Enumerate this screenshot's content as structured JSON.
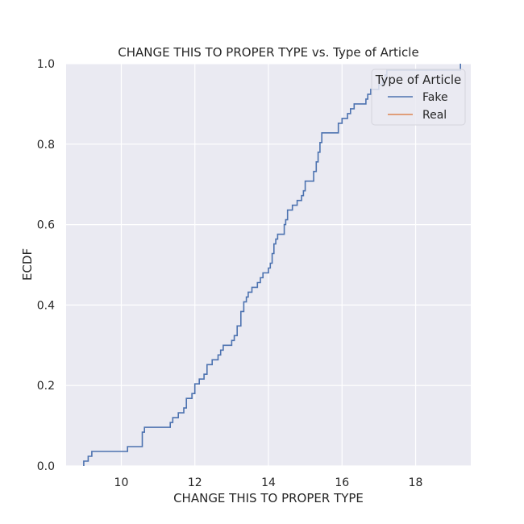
{
  "chart_data": {
    "type": "line",
    "subtype": "ecdf-step",
    "title": "CHANGE THIS TO PROPER TYPE vs. Type of Article",
    "xlabel": "CHANGE THIS TO PROPER TYPE",
    "ylabel": "ECDF",
    "xlim": [
      8.5,
      19.5
    ],
    "ylim": [
      0.0,
      1.0
    ],
    "xticks": [
      "10",
      "12",
      "14",
      "16",
      "18"
    ],
    "yticks": [
      "0.0",
      "0.2",
      "0.4",
      "0.6",
      "0.8",
      "1.0"
    ],
    "grid": true,
    "legend": {
      "title": "Type of Article",
      "placement": "top-right"
    },
    "series": [
      {
        "name": "Fake",
        "color": "#4c72b0",
        "points": [
          [
            8.98,
            0.0
          ],
          [
            8.98,
            0.012
          ],
          [
            9.1,
            0.012
          ],
          [
            9.1,
            0.024
          ],
          [
            9.2,
            0.024
          ],
          [
            9.2,
            0.036
          ],
          [
            10.17,
            0.036
          ],
          [
            10.17,
            0.048
          ],
          [
            10.57,
            0.048
          ],
          [
            10.57,
            0.084
          ],
          [
            10.63,
            0.084
          ],
          [
            10.63,
            0.096
          ],
          [
            11.33,
            0.096
          ],
          [
            11.33,
            0.108
          ],
          [
            11.4,
            0.108
          ],
          [
            11.4,
            0.12
          ],
          [
            11.55,
            0.12
          ],
          [
            11.55,
            0.132
          ],
          [
            11.7,
            0.132
          ],
          [
            11.7,
            0.144
          ],
          [
            11.77,
            0.144
          ],
          [
            11.77,
            0.168
          ],
          [
            11.92,
            0.168
          ],
          [
            11.92,
            0.18
          ],
          [
            12.0,
            0.18
          ],
          [
            12.0,
            0.204
          ],
          [
            12.12,
            0.204
          ],
          [
            12.12,
            0.216
          ],
          [
            12.25,
            0.216
          ],
          [
            12.25,
            0.228
          ],
          [
            12.33,
            0.228
          ],
          [
            12.33,
            0.252
          ],
          [
            12.47,
            0.252
          ],
          [
            12.47,
            0.264
          ],
          [
            12.63,
            0.264
          ],
          [
            12.63,
            0.276
          ],
          [
            12.7,
            0.276
          ],
          [
            12.7,
            0.288
          ],
          [
            12.77,
            0.288
          ],
          [
            12.77,
            0.3
          ],
          [
            13.0,
            0.3
          ],
          [
            13.0,
            0.312
          ],
          [
            13.07,
            0.312
          ],
          [
            13.07,
            0.324
          ],
          [
            13.15,
            0.324
          ],
          [
            13.15,
            0.348
          ],
          [
            13.25,
            0.348
          ],
          [
            13.25,
            0.384
          ],
          [
            13.33,
            0.384
          ],
          [
            13.33,
            0.408
          ],
          [
            13.4,
            0.408
          ],
          [
            13.4,
            0.42
          ],
          [
            13.45,
            0.42
          ],
          [
            13.45,
            0.432
          ],
          [
            13.55,
            0.432
          ],
          [
            13.55,
            0.444
          ],
          [
            13.7,
            0.444
          ],
          [
            13.7,
            0.456
          ],
          [
            13.78,
            0.456
          ],
          [
            13.78,
            0.468
          ],
          [
            13.85,
            0.468
          ],
          [
            13.85,
            0.48
          ],
          [
            14.0,
            0.48
          ],
          [
            14.0,
            0.492
          ],
          [
            14.05,
            0.492
          ],
          [
            14.05,
            0.504
          ],
          [
            14.1,
            0.504
          ],
          [
            14.1,
            0.528
          ],
          [
            14.15,
            0.528
          ],
          [
            14.15,
            0.552
          ],
          [
            14.2,
            0.552
          ],
          [
            14.2,
            0.564
          ],
          [
            14.25,
            0.564
          ],
          [
            14.25,
            0.576
          ],
          [
            14.43,
            0.576
          ],
          [
            14.43,
            0.6
          ],
          [
            14.47,
            0.6
          ],
          [
            14.47,
            0.612
          ],
          [
            14.52,
            0.612
          ],
          [
            14.52,
            0.636
          ],
          [
            14.65,
            0.636
          ],
          [
            14.65,
            0.648
          ],
          [
            14.78,
            0.648
          ],
          [
            14.78,
            0.66
          ],
          [
            14.9,
            0.66
          ],
          [
            14.9,
            0.672
          ],
          [
            14.95,
            0.672
          ],
          [
            14.95,
            0.684
          ],
          [
            15.0,
            0.684
          ],
          [
            15.0,
            0.708
          ],
          [
            15.23,
            0.708
          ],
          [
            15.23,
            0.732
          ],
          [
            15.3,
            0.732
          ],
          [
            15.3,
            0.756
          ],
          [
            15.35,
            0.756
          ],
          [
            15.35,
            0.78
          ],
          [
            15.4,
            0.78
          ],
          [
            15.4,
            0.804
          ],
          [
            15.45,
            0.804
          ],
          [
            15.45,
            0.828
          ],
          [
            15.9,
            0.828
          ],
          [
            15.9,
            0.852
          ],
          [
            16.0,
            0.852
          ],
          [
            16.0,
            0.864
          ],
          [
            16.15,
            0.864
          ],
          [
            16.15,
            0.876
          ],
          [
            16.23,
            0.876
          ],
          [
            16.23,
            0.888
          ],
          [
            16.33,
            0.888
          ],
          [
            16.33,
            0.9
          ],
          [
            16.65,
            0.9
          ],
          [
            16.65,
            0.912
          ],
          [
            16.7,
            0.912
          ],
          [
            16.7,
            0.924
          ],
          [
            16.78,
            0.924
          ],
          [
            16.78,
            0.936
          ],
          [
            17.0,
            0.936
          ],
          [
            17.0,
            0.948
          ],
          [
            17.1,
            0.948
          ],
          [
            17.1,
            0.96
          ],
          [
            17.17,
            0.96
          ],
          [
            17.17,
            0.972
          ],
          [
            17.22,
            0.972
          ],
          [
            17.22,
            0.984
          ],
          [
            19.22,
            0.984
          ],
          [
            19.22,
            1.0
          ]
        ]
      },
      {
        "name": "Real",
        "color": "#dd8452",
        "points": []
      }
    ]
  }
}
